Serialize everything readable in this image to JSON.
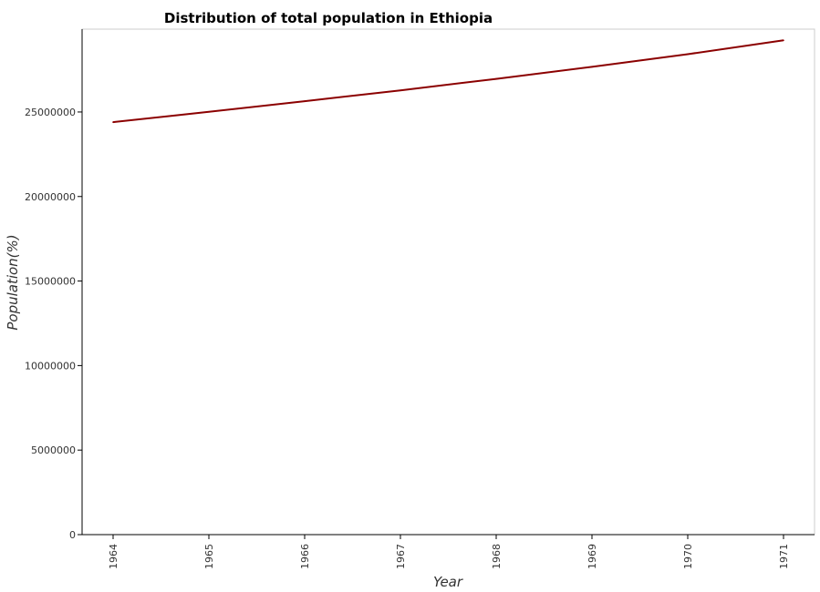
{
  "chart_data": {
    "type": "line",
    "title": "Distribution of total population in Ethiopia",
    "xlabel": "Year",
    "ylabel": "Population(%)",
    "x": [
      "1964",
      "1965",
      "1966",
      "1967",
      "1968",
      "1969",
      "1970",
      "1971"
    ],
    "series": [
      {
        "values": [
          24400000,
          25010000,
          25640000,
          26280000,
          26960000,
          27670000,
          28420000,
          29240000
        ]
      }
    ],
    "yticks": [
      0,
      5000000,
      10000000,
      15000000,
      20000000,
      25000000
    ],
    "ytick_labels": [
      "0",
      "5000000",
      "10000000",
      "15000000",
      "20000000",
      "25000000"
    ],
    "ylim": [
      0,
      29900000
    ],
    "grid": false,
    "line_color": "#8b0000",
    "axis_color": "#000000"
  }
}
